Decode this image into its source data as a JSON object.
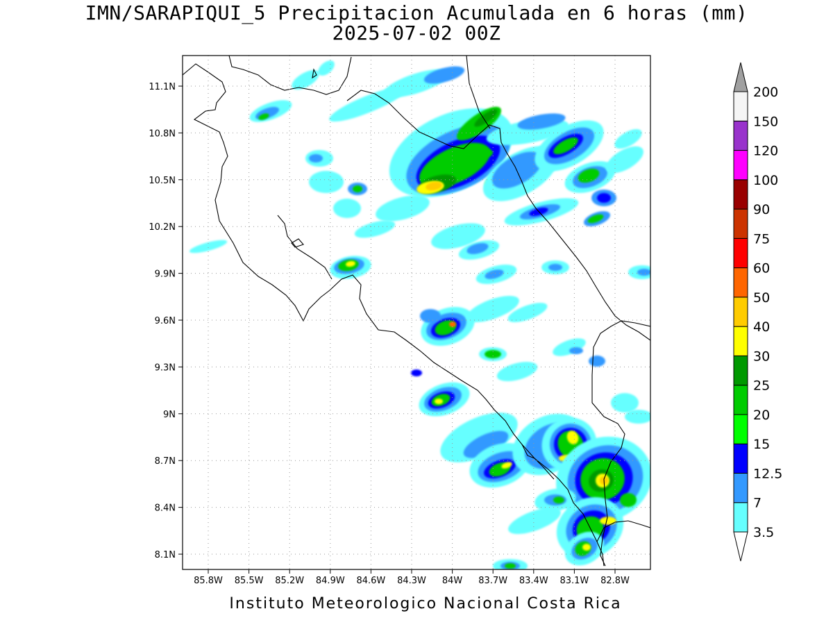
{
  "title": {
    "line1": "IMN/SARAPIQUI_5 Precipitacion Acumulada en 6 horas (mm)",
    "line2": "2025-07-02 00Z"
  },
  "footer": "Instituto Meteorologico Nacional Costa Rica",
  "map": {
    "lon_range": [
      -86.0,
      -83.0
    ],
    "lat_range": [
      8.0,
      11.3
    ],
    "grid": "dotted",
    "lat_ticks": [
      "11.1N",
      "10.8N",
      "10.5N",
      "10.2N",
      "9.9N",
      "9.6N",
      "9.3N",
      "9N",
      "8.7N",
      "8.4N",
      "8.1N"
    ],
    "lon_ticks": [
      "85.8W",
      "85.5W",
      "85.2W",
      "84.9W",
      "84.6W",
      "84.3W",
      "84W",
      "83.7W",
      "83.4W",
      "83.1W",
      "82.8W"
    ]
  },
  "colorbar": {
    "levels": [
      {
        "label": "3.5",
        "color": "#66ffff"
      },
      {
        "label": "7",
        "color": "#3399ff"
      },
      {
        "label": "12.5",
        "color": "#0000ff"
      },
      {
        "label": "15",
        "color": "#00ff00"
      },
      {
        "label": "20",
        "color": "#00cc00"
      },
      {
        "label": "25",
        "color": "#009900"
      },
      {
        "label": "30",
        "color": "#ffff00"
      },
      {
        "label": "40",
        "color": "#ffcc00"
      },
      {
        "label": "50",
        "color": "#ff6600"
      },
      {
        "label": "60",
        "color": "#ff0000"
      },
      {
        "label": "75",
        "color": "#cc3300"
      },
      {
        "label": "90",
        "color": "#990000"
      },
      {
        "label": "100",
        "color": "#ff00ff"
      },
      {
        "label": "120",
        "color": "#9933cc"
      },
      {
        "label": "150",
        "color": "#f5f5f5"
      },
      {
        "label": "200",
        "color": "#a0a0a0"
      }
    ],
    "low_arrow_color": "#ffffff",
    "high_arrow_color": "#a0a0a0"
  }
}
